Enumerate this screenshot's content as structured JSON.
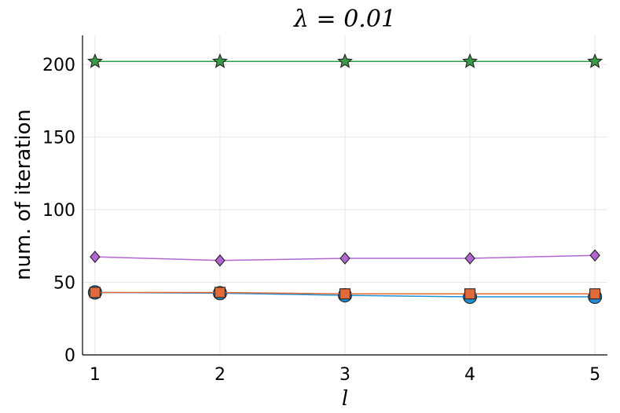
{
  "chart_data": {
    "type": "line",
    "title": "λ = 0.01",
    "xlabel": "l",
    "ylabel": "num. of iteration",
    "x": [
      1,
      2,
      3,
      4,
      5
    ],
    "xticks": [
      "1",
      "2",
      "3",
      "4",
      "5"
    ],
    "yticks": [
      "0",
      "50",
      "100",
      "150",
      "200"
    ],
    "xlim": [
      0.9,
      5.1
    ],
    "ylim": [
      0,
      220
    ],
    "grid": true,
    "legend": "none",
    "series": [
      {
        "values": [
          202,
          202,
          202,
          202,
          202
        ],
        "color": "#3a9a48",
        "marker": "star"
      },
      {
        "values": [
          67.5,
          65,
          66.5,
          66.5,
          68.5
        ],
        "color": "#b266d1",
        "marker": "diamond"
      },
      {
        "values": [
          43,
          43,
          42,
          42,
          42
        ],
        "color": "#e06a3a",
        "marker": "square"
      },
      {
        "values": [
          43,
          42.5,
          41,
          40,
          40
        ],
        "color": "#1f8fd6",
        "marker": "circle"
      }
    ]
  }
}
